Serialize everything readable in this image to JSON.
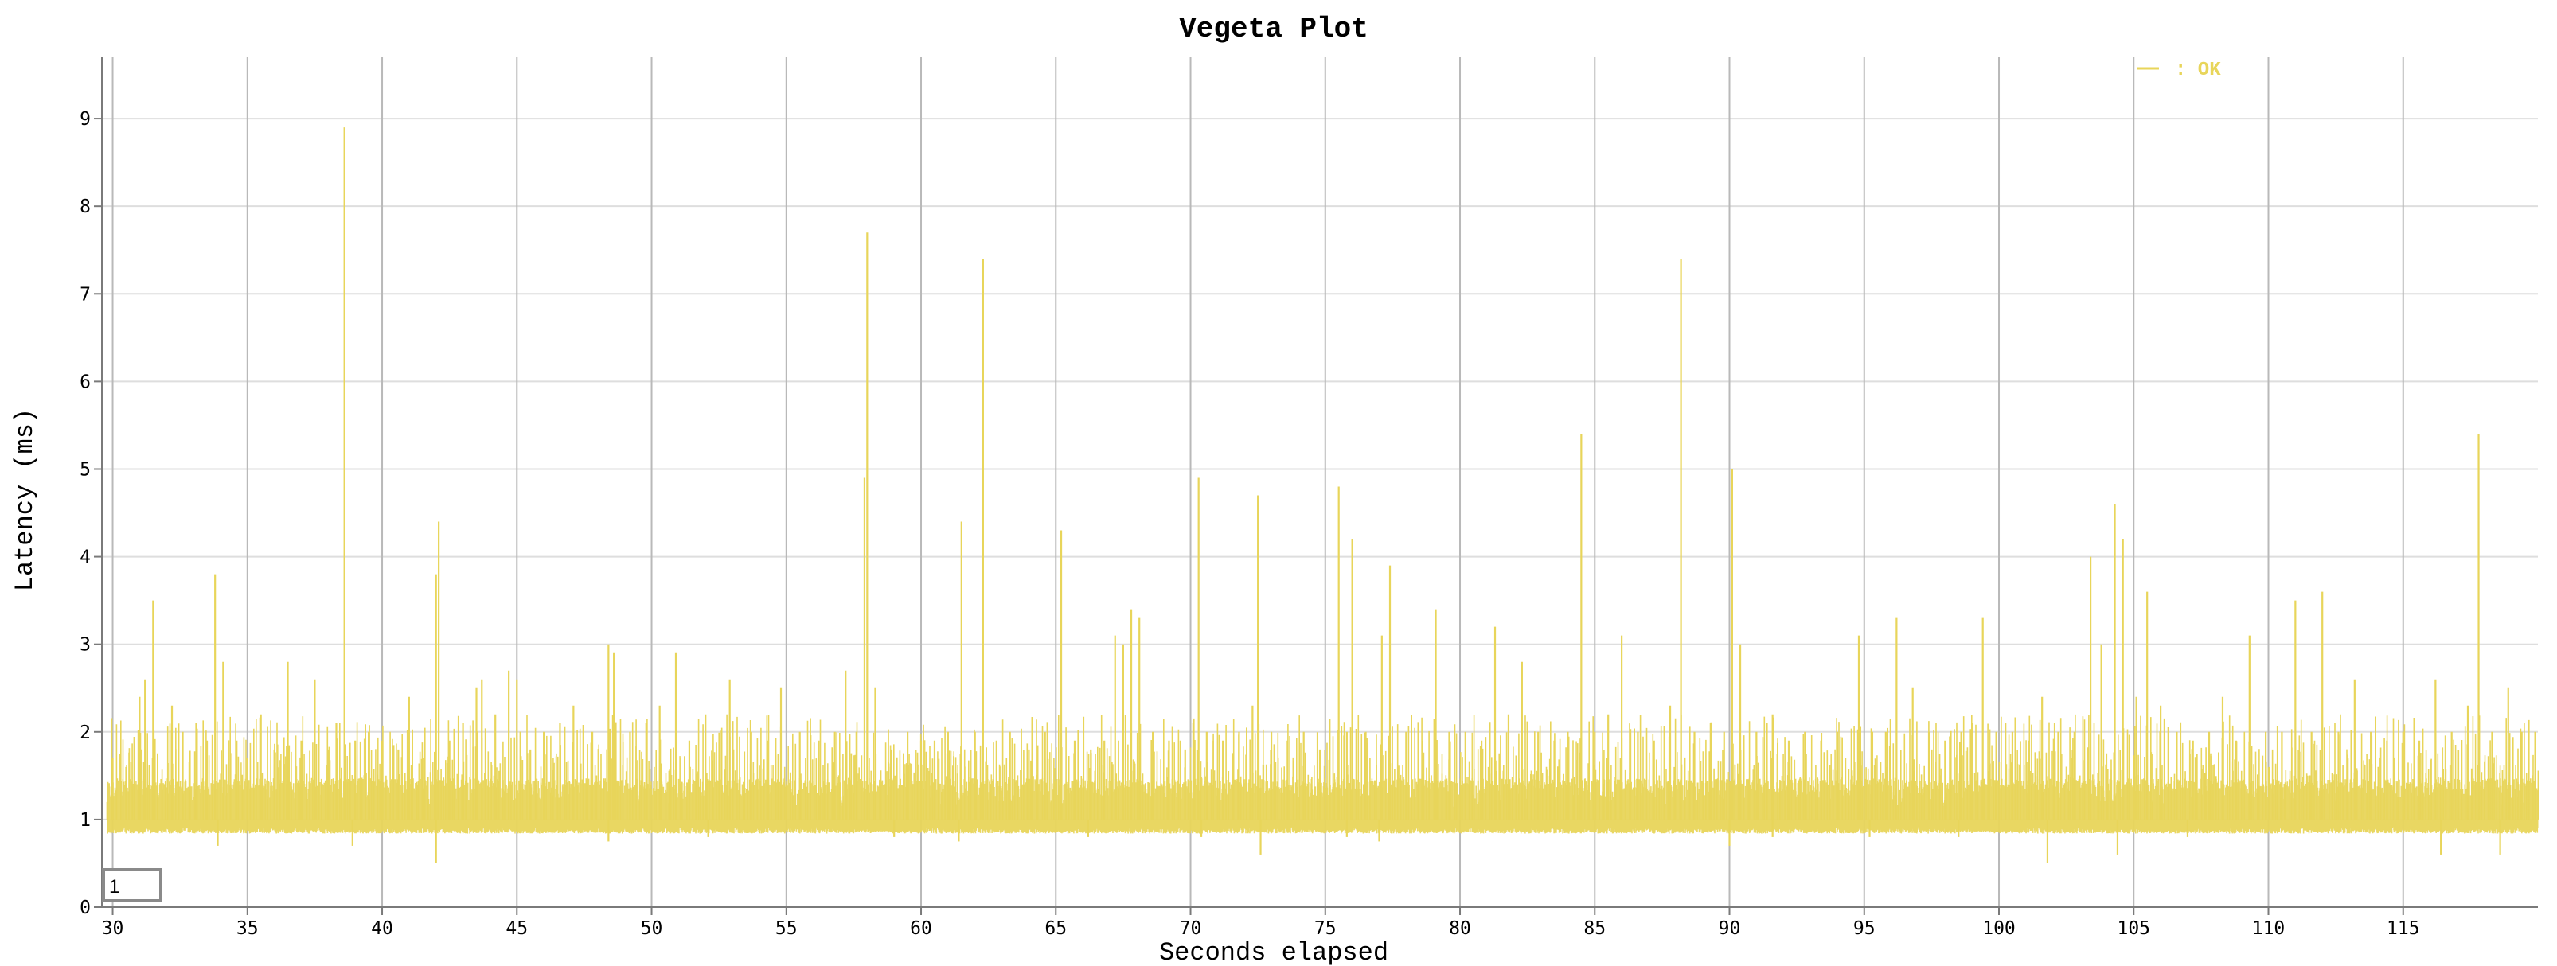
{
  "chart_data": {
    "type": "line",
    "title": "Vegeta Plot",
    "xlabel": "Seconds elapsed",
    "ylabel": "Latency (ms)",
    "xlim": [
      29.6,
      120
    ],
    "ylim": [
      0,
      9.7
    ],
    "x_ticks": [
      30,
      35,
      40,
      45,
      50,
      55,
      60,
      65,
      70,
      75,
      80,
      85,
      90,
      95,
      100,
      105,
      110,
      115
    ],
    "y_ticks": [
      0,
      1,
      2,
      3,
      4,
      5,
      6,
      7,
      8,
      9
    ],
    "grid": true,
    "legend": {
      "placement": "top-right",
      "entries": [
        {
          "label": ": OK",
          "color": "#e8d55a"
        }
      ]
    },
    "series": [
      {
        "name": ": OK",
        "color": "#e8d55a",
        "baseline_ms": 1.0,
        "points": [
          [
            29.8,
            1.2
          ],
          [
            30.0,
            1.7
          ],
          [
            30.5,
            1.6
          ],
          [
            31.0,
            2.4
          ],
          [
            31.2,
            2.6
          ],
          [
            31.5,
            3.5
          ],
          [
            32.2,
            2.3
          ],
          [
            32.6,
            2.0
          ],
          [
            33.1,
            2.1
          ],
          [
            33.5,
            1.9
          ],
          [
            33.8,
            3.8
          ],
          [
            34.1,
            2.8
          ],
          [
            34.6,
            1.9
          ],
          [
            35.0,
            1.7
          ],
          [
            35.5,
            2.2
          ],
          [
            36.0,
            1.8
          ],
          [
            36.5,
            2.8
          ],
          [
            37.0,
            1.9
          ],
          [
            37.5,
            2.6
          ],
          [
            38.0,
            1.8
          ],
          [
            38.3,
            2.1
          ],
          [
            38.6,
            8.9
          ],
          [
            39.0,
            1.9
          ],
          [
            39.5,
            2.0
          ],
          [
            40.0,
            1.9
          ],
          [
            40.6,
            1.8
          ],
          [
            41.0,
            2.4
          ],
          [
            41.5,
            1.7
          ],
          [
            42.0,
            3.8
          ],
          [
            42.1,
            4.4
          ],
          [
            42.5,
            1.9
          ],
          [
            43.0,
            2.1
          ],
          [
            43.5,
            2.5
          ],
          [
            43.7,
            2.6
          ],
          [
            44.2,
            2.2
          ],
          [
            44.7,
            2.7
          ],
          [
            45.0,
            2.6
          ],
          [
            45.5,
            1.8
          ],
          [
            46.0,
            2.0
          ],
          [
            46.6,
            2.1
          ],
          [
            47.1,
            2.3
          ],
          [
            47.8,
            2.0
          ],
          [
            48.4,
            3.0
          ],
          [
            48.6,
            2.9
          ],
          [
            49.2,
            2.0
          ],
          [
            49.8,
            2.1
          ],
          [
            50.3,
            2.3
          ],
          [
            50.9,
            2.9
          ],
          [
            51.4,
            1.9
          ],
          [
            52.0,
            2.2
          ],
          [
            52.9,
            2.6
          ],
          [
            53.7,
            2.0
          ],
          [
            54.3,
            1.9
          ],
          [
            54.8,
            2.5
          ],
          [
            55.5,
            2.0
          ],
          [
            56.2,
            1.9
          ],
          [
            56.8,
            2.0
          ],
          [
            57.2,
            2.7
          ],
          [
            57.6,
            2.0
          ],
          [
            57.9,
            4.9
          ],
          [
            58.0,
            7.7
          ],
          [
            58.3,
            2.5
          ],
          [
            58.9,
            1.8
          ],
          [
            59.5,
            2.0
          ],
          [
            60.0,
            1.9
          ],
          [
            60.5,
            1.9
          ],
          [
            61.0,
            2.0
          ],
          [
            61.5,
            4.4
          ],
          [
            62.0,
            2.0
          ],
          [
            62.3,
            7.4
          ],
          [
            62.8,
            1.9
          ],
          [
            63.3,
            2.0
          ],
          [
            64.0,
            1.8
          ],
          [
            64.6,
            2.0
          ],
          [
            65.2,
            4.3
          ],
          [
            65.7,
            1.9
          ],
          [
            66.3,
            1.8
          ],
          [
            66.8,
            1.9
          ],
          [
            67.2,
            3.1
          ],
          [
            67.5,
            3.0
          ],
          [
            67.8,
            3.4
          ],
          [
            68.1,
            3.3
          ],
          [
            68.6,
            2.0
          ],
          [
            69.2,
            1.9
          ],
          [
            69.8,
            1.8
          ],
          [
            70.1,
            2.1
          ],
          [
            70.3,
            4.9
          ],
          [
            70.6,
            2.0
          ],
          [
            71.2,
            1.9
          ],
          [
            71.8,
            2.0
          ],
          [
            72.3,
            2.3
          ],
          [
            72.5,
            4.7
          ],
          [
            73.0,
            2.0
          ],
          [
            73.6,
            1.9
          ],
          [
            74.2,
            2.0
          ],
          [
            74.8,
            1.8
          ],
          [
            75.5,
            4.8
          ],
          [
            75.8,
            2.0
          ],
          [
            76.0,
            4.2
          ],
          [
            76.5,
            2.0
          ],
          [
            77.1,
            3.1
          ],
          [
            77.4,
            3.9
          ],
          [
            78.0,
            2.0
          ],
          [
            78.6,
            1.9
          ],
          [
            79.1,
            3.4
          ],
          [
            79.6,
            2.0
          ],
          [
            80.2,
            2.0
          ],
          [
            80.8,
            1.9
          ],
          [
            81.3,
            3.2
          ],
          [
            81.8,
            2.2
          ],
          [
            82.3,
            2.8
          ],
          [
            82.9,
            2.0
          ],
          [
            83.5,
            1.9
          ],
          [
            84.0,
            2.0
          ],
          [
            84.5,
            5.4
          ],
          [
            85.0,
            2.0
          ],
          [
            85.5,
            2.2
          ],
          [
            86.0,
            3.1
          ],
          [
            86.6,
            2.0
          ],
          [
            87.2,
            1.9
          ],
          [
            87.8,
            2.3
          ],
          [
            88.2,
            7.4
          ],
          [
            88.7,
            2.0
          ],
          [
            89.3,
            2.1
          ],
          [
            89.8,
            2.0
          ],
          [
            90.1,
            5.0
          ],
          [
            90.4,
            3.0
          ],
          [
            91.0,
            2.0
          ],
          [
            91.6,
            2.2
          ],
          [
            92.2,
            1.9
          ],
          [
            92.8,
            2.0
          ],
          [
            93.4,
            1.9
          ],
          [
            94.0,
            2.0
          ],
          [
            94.8,
            3.1
          ],
          [
            95.3,
            2.0
          ],
          [
            95.8,
            2.0
          ],
          [
            96.2,
            3.3
          ],
          [
            96.8,
            2.5
          ],
          [
            97.4,
            2.0
          ],
          [
            98.0,
            1.9
          ],
          [
            98.6,
            2.0
          ],
          [
            99.0,
            2.1
          ],
          [
            99.4,
            3.3
          ],
          [
            99.9,
            2.0
          ],
          [
            100.5,
            2.0
          ],
          [
            101.1,
            1.9
          ],
          [
            101.6,
            2.4
          ],
          [
            102.2,
            2.0
          ],
          [
            102.8,
            2.0
          ],
          [
            103.4,
            4.0
          ],
          [
            103.8,
            3.0
          ],
          [
            104.3,
            4.6
          ],
          [
            104.6,
            4.2
          ],
          [
            105.1,
            2.4
          ],
          [
            105.5,
            3.6
          ],
          [
            106.0,
            2.3
          ],
          [
            106.6,
            2.0
          ],
          [
            107.2,
            1.9
          ],
          [
            107.8,
            2.0
          ],
          [
            108.3,
            2.4
          ],
          [
            108.8,
            1.9
          ],
          [
            109.3,
            3.1
          ],
          [
            109.9,
            2.0
          ],
          [
            110.5,
            2.0
          ],
          [
            111.0,
            3.5
          ],
          [
            111.6,
            2.0
          ],
          [
            112.0,
            3.6
          ],
          [
            112.6,
            2.0
          ],
          [
            113.2,
            2.6
          ],
          [
            113.8,
            2.0
          ],
          [
            114.4,
            1.9
          ],
          [
            115.0,
            2.0
          ],
          [
            115.6,
            1.9
          ],
          [
            116.2,
            2.6
          ],
          [
            116.8,
            2.0
          ],
          [
            117.4,
            2.3
          ],
          [
            117.8,
            5.4
          ],
          [
            118.3,
            2.0
          ],
          [
            118.9,
            2.5
          ],
          [
            119.4,
            2.0
          ],
          [
            119.9,
            2.0
          ]
        ],
        "dips": [
          [
            33.9,
            0.7
          ],
          [
            38.9,
            0.7
          ],
          [
            42.0,
            0.5
          ],
          [
            48.4,
            0.75
          ],
          [
            52.1,
            0.8
          ],
          [
            59.0,
            0.8
          ],
          [
            61.4,
            0.75
          ],
          [
            66.2,
            0.8
          ],
          [
            70.4,
            0.8
          ],
          [
            72.6,
            0.6
          ],
          [
            75.8,
            0.8
          ],
          [
            77.0,
            0.75
          ],
          [
            90.0,
            0.7
          ],
          [
            91.6,
            0.8
          ],
          [
            95.2,
            0.8
          ],
          [
            98.5,
            0.8
          ],
          [
            101.8,
            0.5
          ],
          [
            104.4,
            0.6
          ],
          [
            107.0,
            0.8
          ],
          [
            116.4,
            0.6
          ],
          [
            118.6,
            0.6
          ]
        ]
      }
    ]
  },
  "range_selector": {
    "value": "1"
  }
}
